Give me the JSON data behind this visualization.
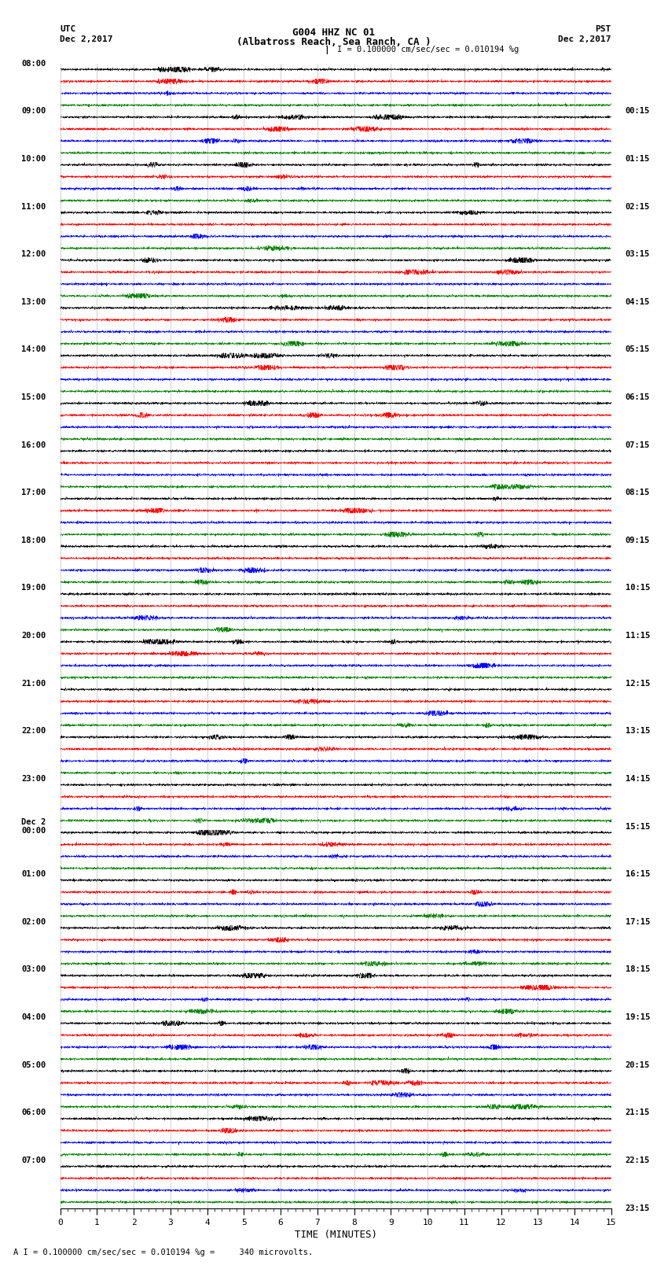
{
  "title_line1": "G004 HHZ NC 01",
  "title_line2": "(Albatross Reach, Sea Ranch, CA )",
  "title_line3": "I = 0.100000 cm/sec/sec = 0.010194 %g",
  "left_label_top": "UTC",
  "left_label_date": "Dec 2,2017",
  "right_label_top": "PST",
  "right_label_date": "Dec 2,2017",
  "xlabel": "TIME (MINUTES)",
  "footer": "A I = 0.100000 cm/sec/sec = 0.010194 %g =     340 microvolts.",
  "left_times": [
    "08:00",
    "09:00",
    "10:00",
    "11:00",
    "12:00",
    "13:00",
    "14:00",
    "15:00",
    "16:00",
    "17:00",
    "18:00",
    "19:00",
    "20:00",
    "21:00",
    "22:00",
    "23:00",
    "Dec 2\n00:00",
    "01:00",
    "02:00",
    "03:00",
    "04:00",
    "05:00",
    "06:00",
    "07:00"
  ],
  "right_times": [
    "00:15",
    "01:15",
    "02:15",
    "03:15",
    "04:15",
    "05:15",
    "06:15",
    "07:15",
    "08:15",
    "09:15",
    "10:15",
    "11:15",
    "12:15",
    "13:15",
    "14:15",
    "15:15",
    "16:15",
    "17:15",
    "18:15",
    "19:15",
    "20:15",
    "21:15",
    "22:15",
    "23:15"
  ],
  "colors": [
    "black",
    "red",
    "blue",
    "green"
  ],
  "n_rows": 24,
  "traces_per_row": 4,
  "background_color": "white",
  "noise_amplitude": 0.06,
  "figsize": [
    8.5,
    16.13
  ],
  "dpi": 100,
  "x_min": 0,
  "x_max": 15,
  "x_ticks": [
    0,
    1,
    2,
    3,
    4,
    5,
    6,
    7,
    8,
    9,
    10,
    11,
    12,
    13,
    14,
    15
  ],
  "grid_color": "#888888",
  "trace_lw": 0.35
}
